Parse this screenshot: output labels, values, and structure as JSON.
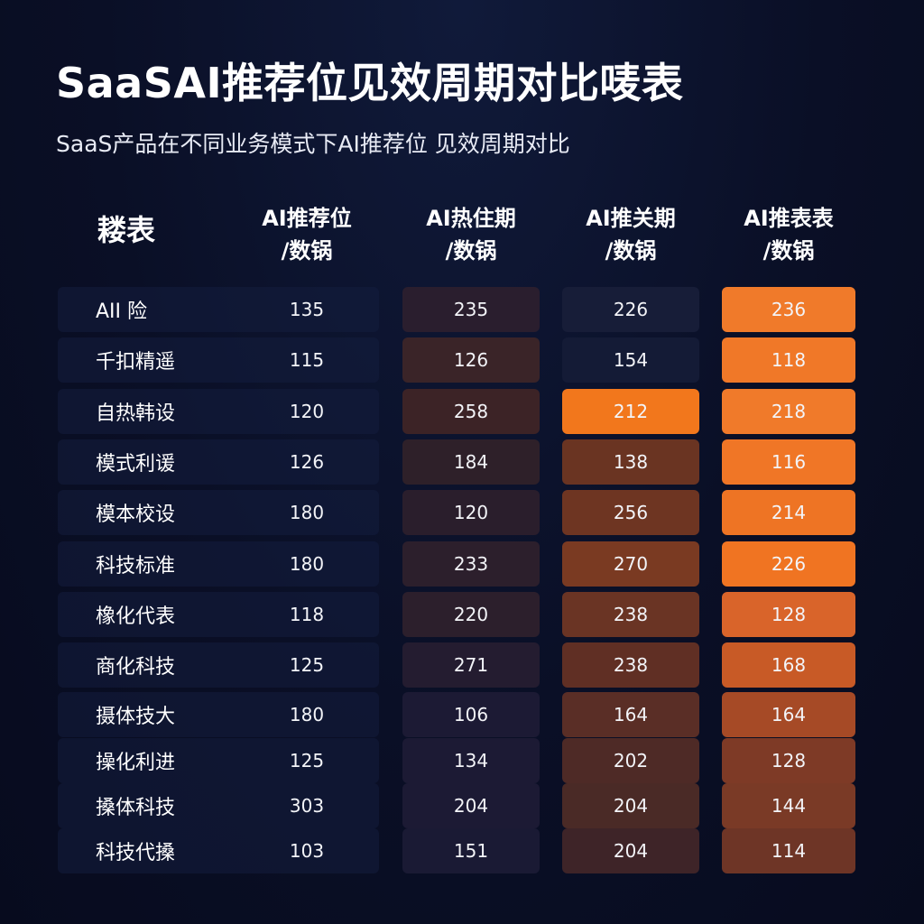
{
  "chart_data": {
    "type": "table",
    "title": "SaaSAI推荐位见效周期对比唛表",
    "subtitle": "SaaS产品在不同业务模式下AI推荐位 见效周期对比",
    "corner_header": "耧表",
    "columns": [
      {
        "line1": "AI推荐位",
        "line2": "/数锅"
      },
      {
        "line1": "AI热住期",
        "line2": "/数锅"
      },
      {
        "line1": "AI推关期",
        "line2": "/数锅"
      },
      {
        "line1": "AI推表表",
        "line2": "/数锅"
      }
    ],
    "rows": [
      {
        "label": "AII 险",
        "values": [
          "135",
          "235",
          "226",
          "236"
        ]
      },
      {
        "label": "千扣精遥",
        "values": [
          "115",
          "126",
          "154",
          "118"
        ]
      },
      {
        "label": "自热韩设",
        "values": [
          "120",
          "258",
          "212",
          "218"
        ]
      },
      {
        "label": "模式利谖",
        "values": [
          "126",
          "184",
          "138",
          "116"
        ]
      },
      {
        "label": "模本校设",
        "values": [
          "180",
          "120",
          "256",
          "214"
        ]
      },
      {
        "label": "科技标准",
        "values": [
          "180",
          "233",
          "270",
          "226"
        ]
      },
      {
        "label": "橡化代表",
        "values": [
          "118",
          "220",
          "238",
          "128"
        ]
      },
      {
        "label": "商化科技",
        "values": [
          "125",
          "271",
          "238",
          "168"
        ]
      },
      {
        "label": "摄体技大",
        "values": [
          "180",
          "106",
          "164",
          "164"
        ]
      },
      {
        "label": "操化利进",
        "values": [
          "125",
          "134",
          "202",
          "128"
        ]
      },
      {
        "label": "搡体科技",
        "values": [
          "303",
          "204",
          "204",
          "144"
        ]
      },
      {
        "label": "科技代搡",
        "values": [
          "103",
          "151",
          "204",
          "114"
        ]
      }
    ],
    "cell_colors": [
      [
        "#111a38",
        "#2a1e2e",
        "#171d38",
        "#f07a2a"
      ],
      [
        "#111a38",
        "#3a2428",
        "#141b36",
        "#f07828"
      ],
      [
        "#111a38",
        "#3c2326",
        "#f2771c",
        "#f07a2a"
      ],
      [
        "#111a38",
        "#2e2029",
        "#6a3422",
        "#f07626"
      ],
      [
        "#111a38",
        "#2a1e2c",
        "#6e3522",
        "#ee7424"
      ],
      [
        "#111a38",
        "#2c1f2c",
        "#7a3a22",
        "#f07422"
      ],
      [
        "#111a38",
        "#2c1f2c",
        "#6a3424",
        "#d9642a"
      ],
      [
        "#111a38",
        "#241c30",
        "#602f24",
        "#c85a26"
      ],
      [
        "#111a38",
        "#1c1a34",
        "#5a2e26",
        "#a64a26"
      ],
      [
        "#111a38",
        "#1c1a34",
        "#4e2a26",
        "#7e3a26"
      ],
      [
        "#111a38",
        "#1c1a34",
        "#4a2a26",
        "#7a3a26"
      ],
      [
        "#111a38",
        "#1a1a34",
        "#3e2428",
        "#6e3526"
      ]
    ]
  }
}
